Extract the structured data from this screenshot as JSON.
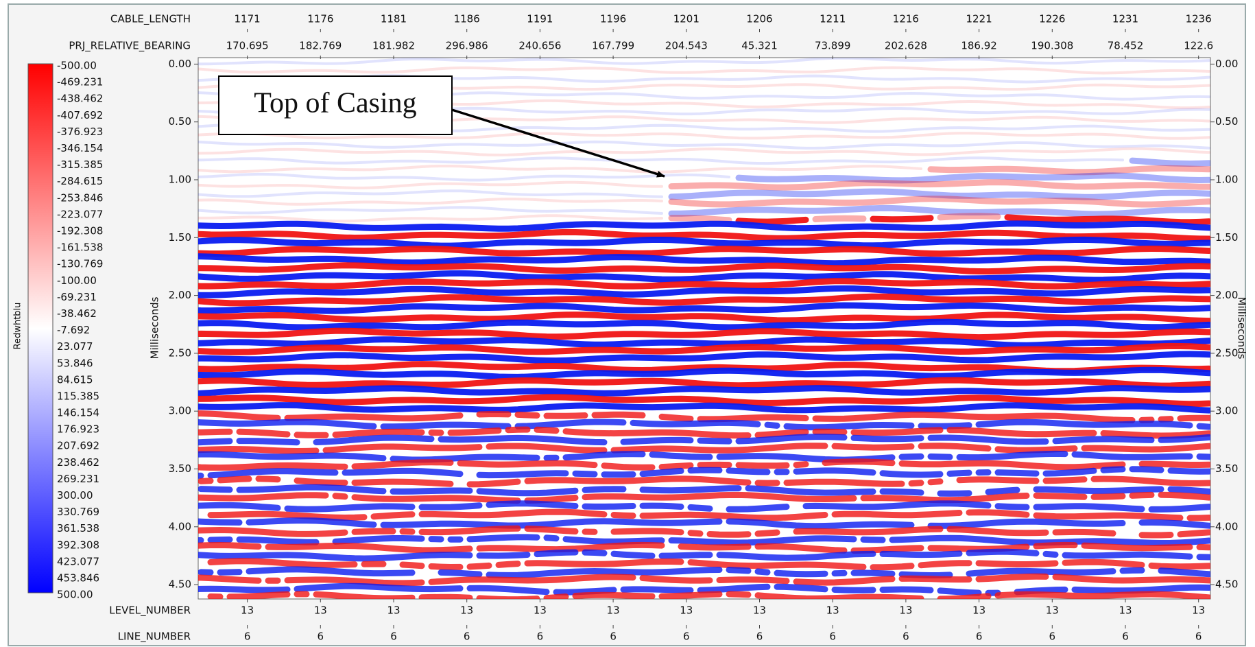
{
  "top_axes": {
    "rows": [
      {
        "label": "CABLE_LENGTH",
        "values": [
          "1171",
          "1176",
          "1181",
          "1186",
          "1191",
          "1196",
          "1201",
          "1206",
          "1211",
          "1216",
          "1221",
          "1226",
          "1231",
          "1236"
        ]
      },
      {
        "label": "PRJ_RELATIVE_BEARING",
        "values": [
          "170.695",
          "182.769",
          "181.982",
          "296.986",
          "240.656",
          "167.799",
          "204.543",
          "45.321",
          "73.899",
          "202.628",
          "186.92",
          "190.308",
          "78.452",
          "122.6"
        ]
      }
    ]
  },
  "bottom_axes": {
    "rows": [
      {
        "label": "LEVEL_NUMBER",
        "values": [
          "13",
          "13",
          "13",
          "13",
          "13",
          "13",
          "13",
          "13",
          "13",
          "13",
          "13",
          "13",
          "13",
          "13"
        ]
      },
      {
        "label": "LINE_NUMBER",
        "values": [
          "6",
          "6",
          "6",
          "6",
          "6",
          "6",
          "6",
          "6",
          "6",
          "6",
          "6",
          "6",
          "6",
          "6"
        ]
      }
    ]
  },
  "time_axis": {
    "label": "Milliseconds",
    "ticks": [
      "0.00",
      "0.50",
      "1.00",
      "1.50",
      "2.00",
      "2.50",
      "3.00",
      "3.50",
      "4.00",
      "4.50"
    ]
  },
  "colorbar": {
    "label": "Redwhtblu",
    "ticks": [
      "-500.00",
      "-469.231",
      "-438.462",
      "-407.692",
      "-376.923",
      "-346.154",
      "-315.385",
      "-284.615",
      "-253.846",
      "-223.077",
      "-192.308",
      "-161.538",
      "-130.769",
      "-100.00",
      "-69.231",
      "-38.462",
      "-7.692",
      "23.077",
      "53.846",
      "84.615",
      "115.385",
      "146.154",
      "176.923",
      "207.692",
      "238.462",
      "269.231",
      "300.00",
      "330.769",
      "361.538",
      "392.308",
      "423.077",
      "453.846",
      "500.00"
    ]
  },
  "annotation": "Top of Casing"
}
